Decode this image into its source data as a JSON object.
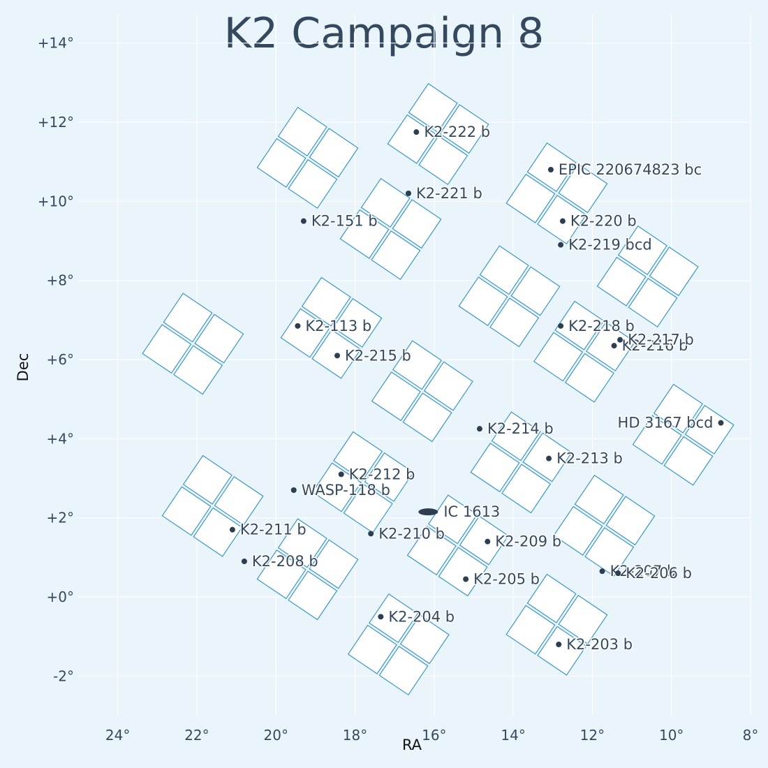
{
  "chart_data": {
    "type": "scatter",
    "title": "K2 Campaign 8",
    "xlabel": "RA",
    "ylabel": "Dec",
    "xlim": [
      25,
      8
    ],
    "ylim": [
      -3,
      14.7
    ],
    "x_ticks": [
      24,
      22,
      20,
      18,
      16,
      14,
      12,
      10,
      8
    ],
    "x_tick_labels": [
      "24°",
      "22°",
      "20°",
      "18°",
      "16°",
      "14°",
      "12°",
      "10°",
      "8°"
    ],
    "y_ticks": [
      -2,
      0,
      2,
      4,
      6,
      8,
      10,
      12,
      14
    ],
    "y_tick_labels": [
      "-2°",
      "+0°",
      "+2°",
      "+4°",
      "+6°",
      "+8°",
      "+10°",
      "+12°",
      "+14°"
    ],
    "grid": true,
    "colors": {
      "background": "#eaf4fb",
      "module_edge": "#3a97c9",
      "module_fill": "#ffffff",
      "text": "#34495e",
      "point": "#2c3e50"
    },
    "modules": [
      {
        "ra": 22.1,
        "dec": 6.4
      },
      {
        "ra": 19.2,
        "dec": 11.1
      },
      {
        "ra": 15.9,
        "dec": 11.7
      },
      {
        "ra": 17.1,
        "dec": 9.3
      },
      {
        "ra": 12.9,
        "dec": 10.2
      },
      {
        "ra": 10.6,
        "dec": 8.1
      },
      {
        "ra": 18.6,
        "dec": 6.8
      },
      {
        "ra": 14.1,
        "dec": 7.6
      },
      {
        "ra": 16.3,
        "dec": 5.2
      },
      {
        "ra": 12.2,
        "dec": 6.2
      },
      {
        "ra": 9.7,
        "dec": 4.1
      },
      {
        "ra": 21.6,
        "dec": 2.3
      },
      {
        "ra": 17.8,
        "dec": 2.9
      },
      {
        "ra": 13.8,
        "dec": 3.4
      },
      {
        "ra": 19.2,
        "dec": 0.7
      },
      {
        "ra": 15.4,
        "dec": 1.3
      },
      {
        "ra": 11.7,
        "dec": 1.8
      },
      {
        "ra": 16.9,
        "dec": -1.2
      },
      {
        "ra": 12.9,
        "dec": -0.7
      }
    ],
    "points": [
      {
        "name": "K2-222 b",
        "ra": 16.45,
        "dec": 11.75
      },
      {
        "name": "EPIC 220674823 bc",
        "ra": 13.05,
        "dec": 10.8
      },
      {
        "name": "K2-221 b",
        "ra": 16.65,
        "dec": 10.2
      },
      {
        "name": "K2-151 b",
        "ra": 19.3,
        "dec": 9.5
      },
      {
        "name": "K2-220 b",
        "ra": 12.75,
        "dec": 9.5
      },
      {
        "name": "K2-219 bcd",
        "ra": 12.8,
        "dec": 8.9
      },
      {
        "name": "K2-113 b",
        "ra": 19.45,
        "dec": 6.85
      },
      {
        "name": "K2-218 b",
        "ra": 12.8,
        "dec": 6.85
      },
      {
        "name": "K2-216 b",
        "ra": 11.45,
        "dec": 6.35
      },
      {
        "name": "K2-217 b",
        "ra": 11.3,
        "dec": 6.5
      },
      {
        "name": "K2-215 b",
        "ra": 18.45,
        "dec": 6.1
      },
      {
        "name": "HD 3167 bcd",
        "ra": 8.75,
        "dec": 4.4,
        "label_side": "left"
      },
      {
        "name": "K2-214 b",
        "ra": 14.85,
        "dec": 4.25
      },
      {
        "name": "K2-213 b",
        "ra": 13.1,
        "dec": 3.5
      },
      {
        "name": "K2-212 b",
        "ra": 18.35,
        "dec": 3.1
      },
      {
        "name": "WASP-118 b",
        "ra": 19.55,
        "dec": 2.7
      },
      {
        "name": "IC 1613",
        "ra": 16.15,
        "dec": 2.15,
        "kind": "galaxy"
      },
      {
        "name": "K2-211 b",
        "ra": 21.1,
        "dec": 1.7
      },
      {
        "name": "K2-210 b",
        "ra": 17.6,
        "dec": 1.6
      },
      {
        "name": "K2-209 b",
        "ra": 14.65,
        "dec": 1.4
      },
      {
        "name": "K2-208 b",
        "ra": 20.8,
        "dec": 0.9
      },
      {
        "name": "K2-207 b",
        "ra": 11.75,
        "dec": 0.65
      },
      {
        "name": "K2-206 b",
        "ra": 11.35,
        "dec": 0.6
      },
      {
        "name": "K2-205 b",
        "ra": 15.2,
        "dec": 0.45
      },
      {
        "name": "K2-204 b",
        "ra": 17.35,
        "dec": -0.5
      },
      {
        "name": "K2-203 b",
        "ra": 12.85,
        "dec": -1.2
      }
    ]
  }
}
